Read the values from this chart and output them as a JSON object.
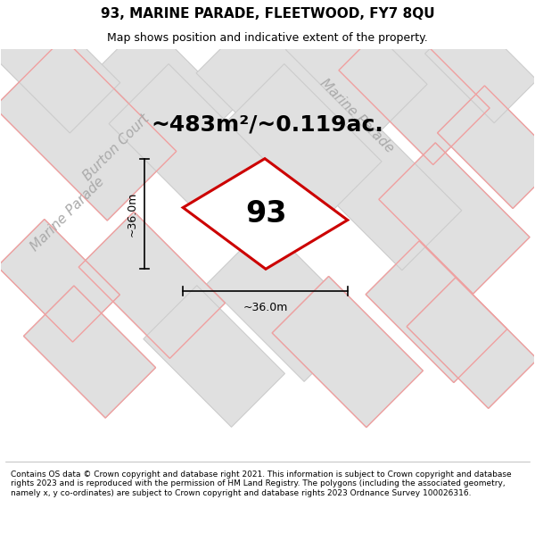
{
  "title_line1": "93, MARINE PARADE, FLEETWOOD, FY7 8QU",
  "title_line2": "Map shows position and indicative extent of the property.",
  "area_label": "~483m²/~0.119ac.",
  "plot_number": "93",
  "dim_left": "~36.0m",
  "dim_bottom": "~36.0m",
  "street1_top": "Marine Parade",
  "street1_left": "Marine Parade",
  "street2": "Burton Court",
  "footer": "Contains OS data © Crown copyright and database right 2021. This information is subject to Crown copyright and database rights 2023 and is reproduced with the permission of HM Land Registry. The polygons (including the associated geometry, namely x, y co-ordinates) are subject to Crown copyright and database rights 2023 Ordnance Survey 100026316.",
  "map_bg": "#f2f2f2",
  "block_fill": "#e0e0e0",
  "block_edge": "#cccccc",
  "plot_color": "#cc0000",
  "pink_line_color": "#f0a0a0",
  "street_label_color": "#aaaaaa",
  "figsize": [
    6.0,
    6.25
  ],
  "dpi": 100,
  "title_fontsize": 11,
  "subtitle_fontsize": 9,
  "area_fontsize": 18,
  "plot_num_fontsize": 24,
  "dim_fontsize": 9,
  "street_fontsize": 11,
  "footer_fontsize": 6.5
}
